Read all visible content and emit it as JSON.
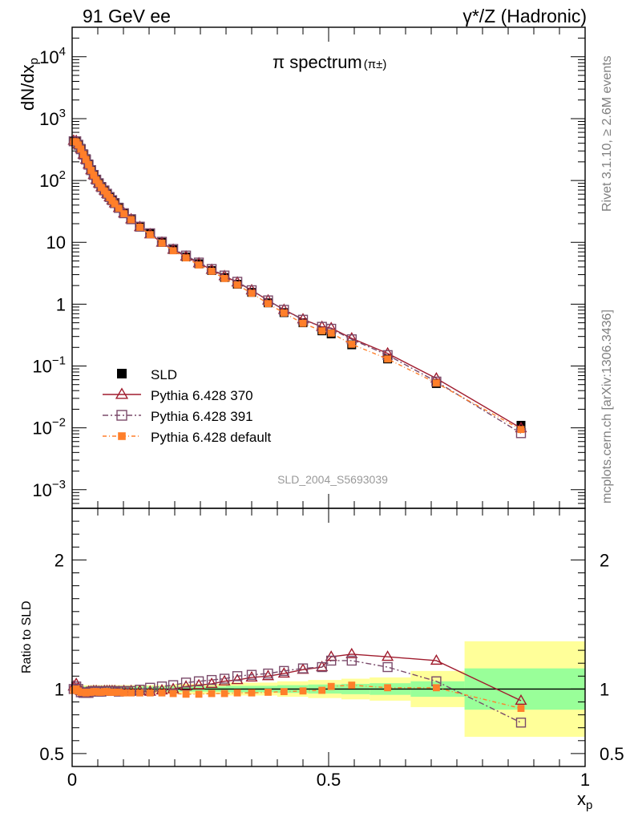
{
  "header": {
    "left": "91 GeV ee",
    "right": "γ*/Z (Hadronic)"
  },
  "side_labels": {
    "top": "Rivet 3.1.10, ≥ 2.6M events",
    "bottom": "mcplots.cern.ch [arXiv:1306.3436]"
  },
  "chart_data": [
    {
      "type": "scatter",
      "panel": "main",
      "title": "π spectrum",
      "title_sub": "(π±)",
      "ylabel": "dN/dx",
      "ylabel_sub": "p",
      "xlabel": "",
      "yscale": "log",
      "xlim": [
        0,
        1
      ],
      "ylim": [
        0.0005,
        30000
      ],
      "yticks": [
        {
          "v": 0.001,
          "base": "10",
          "exp": "−3"
        },
        {
          "v": 0.01,
          "base": "10",
          "exp": "−2"
        },
        {
          "v": 0.1,
          "base": "10",
          "exp": "−1"
        },
        {
          "v": 1,
          "base": "1",
          "exp": ""
        },
        {
          "v": 10,
          "base": "10",
          "exp": ""
        },
        {
          "v": 100,
          "base": "10",
          "exp": "2"
        },
        {
          "v": 1000,
          "base": "10",
          "exp": "3"
        },
        {
          "v": 10000,
          "base": "10",
          "exp": "4"
        }
      ],
      "watermark": "SLD_2004_S5693039",
      "legend_position": "bottom-left",
      "series": [
        {
          "name": "SLD",
          "color": "#000000",
          "marker": "filled-square",
          "x": [
            0.003,
            0.008,
            0.012,
            0.017,
            0.022,
            0.027,
            0.032,
            0.037,
            0.042,
            0.047,
            0.052,
            0.057,
            0.063,
            0.068,
            0.073,
            0.078,
            0.083,
            0.091,
            0.101,
            0.115,
            0.132,
            0.152,
            0.175,
            0.197,
            0.222,
            0.247,
            0.272,
            0.297,
            0.322,
            0.35,
            0.382,
            0.413,
            0.45,
            0.487,
            0.505,
            0.545,
            0.615,
            0.71,
            0.875
          ],
          "y": [
            430,
            420,
            380,
            330,
            270,
            225,
            185,
            150,
            125,
            105,
            92,
            80,
            70,
            62,
            55,
            49,
            44,
            37,
            30,
            24,
            18,
            13.8,
            10,
            7.6,
            5.8,
            4.5,
            3.5,
            2.7,
            2.1,
            1.55,
            1.05,
            0.73,
            0.5,
            0.37,
            0.33,
            0.22,
            0.13,
            0.052,
            0.011
          ]
        },
        {
          "name": "Pythia 6.428 370",
          "color": "#a01c2e",
          "marker": "open-triangle",
          "dash": "",
          "x": [
            0.003,
            0.008,
            0.012,
            0.017,
            0.022,
            0.027,
            0.032,
            0.037,
            0.042,
            0.047,
            0.052,
            0.057,
            0.063,
            0.068,
            0.073,
            0.078,
            0.083,
            0.091,
            0.101,
            0.115,
            0.132,
            0.152,
            0.175,
            0.197,
            0.222,
            0.247,
            0.272,
            0.297,
            0.322,
            0.35,
            0.382,
            0.413,
            0.45,
            0.487,
            0.505,
            0.545,
            0.615,
            0.71,
            0.875
          ],
          "y": [
            440,
            436,
            385,
            325,
            262,
            218,
            181,
            147,
            123,
            103,
            90,
            78,
            69,
            61,
            54,
            48,
            43,
            36,
            29.5,
            23.6,
            17.7,
            13.5,
            9.9,
            7.6,
            5.9,
            4.6,
            3.6,
            2.85,
            2.25,
            1.68,
            1.15,
            0.81,
            0.57,
            0.43,
            0.41,
            0.28,
            0.16,
            0.063,
            0.0099
          ]
        },
        {
          "name": "Pythia 6.428 391",
          "color": "#7a4a6a",
          "marker": "open-square",
          "dash": "7,3,2,3",
          "x": [
            0.003,
            0.008,
            0.012,
            0.017,
            0.022,
            0.027,
            0.032,
            0.037,
            0.042,
            0.047,
            0.052,
            0.057,
            0.063,
            0.068,
            0.073,
            0.078,
            0.083,
            0.091,
            0.101,
            0.115,
            0.132,
            0.152,
            0.175,
            0.197,
            0.222,
            0.247,
            0.272,
            0.297,
            0.322,
            0.35,
            0.382,
            0.413,
            0.45,
            0.487,
            0.505,
            0.545,
            0.615,
            0.71,
            0.875
          ],
          "y": [
            430,
            430,
            378,
            320,
            262,
            218,
            180,
            147,
            123,
            103,
            90,
            78,
            69,
            61,
            54,
            48,
            43,
            36,
            29.5,
            23.6,
            17.9,
            14,
            10.2,
            7.8,
            6.1,
            4.7,
            3.7,
            2.9,
            2.3,
            1.68,
            1.15,
            0.81,
            0.56,
            0.43,
            0.4,
            0.27,
            0.15,
            0.056,
            0.0082
          ]
        },
        {
          "name": "Pythia 6.428 default",
          "color": "#ff7f2a",
          "marker": "filled-square-small",
          "dash": "5,3,1,3",
          "x": [
            0.003,
            0.008,
            0.012,
            0.017,
            0.022,
            0.027,
            0.032,
            0.037,
            0.042,
            0.047,
            0.052,
            0.057,
            0.063,
            0.068,
            0.073,
            0.078,
            0.083,
            0.091,
            0.101,
            0.115,
            0.132,
            0.152,
            0.175,
            0.197,
            0.222,
            0.247,
            0.272,
            0.297,
            0.322,
            0.35,
            0.382,
            0.413,
            0.45,
            0.487,
            0.505,
            0.545,
            0.615,
            0.71,
            0.875
          ],
          "y": [
            425,
            420,
            375,
            322,
            263,
            218,
            180,
            146,
            122,
            102,
            89,
            77,
            68,
            60,
            53,
            47,
            42,
            35.5,
            29,
            23.3,
            17.5,
            13.3,
            9.7,
            7.3,
            5.6,
            4.3,
            3.4,
            2.6,
            2.05,
            1.5,
            1.02,
            0.72,
            0.49,
            0.37,
            0.34,
            0.225,
            0.13,
            0.053,
            0.0094
          ]
        }
      ]
    },
    {
      "type": "scatter",
      "panel": "ratio",
      "ylabel": "Ratio to SLD",
      "xlabel": "x",
      "xlabel_sub": "p",
      "xlim": [
        0,
        1
      ],
      "ylim": [
        0.4,
        2.4
      ],
      "xticks": [
        0,
        0.5,
        1
      ],
      "xtick_labels": [
        "0",
        "0.5",
        "1"
      ],
      "yticks": [
        0.5,
        1,
        2
      ],
      "ytick_labels": [
        "0.5",
        "1",
        "2"
      ],
      "uncertainty_bands": {
        "colors": {
          "stat": "#99ff99",
          "total": "#ffff99"
        },
        "bins": [
          {
            "x0": 0.0,
            "x1": 0.12,
            "stat": 0.02,
            "total": 0.03
          },
          {
            "x0": 0.12,
            "x1": 0.2,
            "stat": 0.02,
            "total": 0.03
          },
          {
            "x0": 0.2,
            "x1": 0.3,
            "stat": 0.02,
            "total": 0.04
          },
          {
            "x0": 0.3,
            "x1": 0.4,
            "stat": 0.025,
            "total": 0.05
          },
          {
            "x0": 0.4,
            "x1": 0.46,
            "stat": 0.03,
            "total": 0.06
          },
          {
            "x0": 0.46,
            "x1": 0.525,
            "stat": 0.035,
            "total": 0.07
          },
          {
            "x0": 0.525,
            "x1": 0.58,
            "stat": 0.04,
            "total": 0.08
          },
          {
            "x0": 0.58,
            "x1": 0.66,
            "stat": 0.045,
            "total": 0.09
          },
          {
            "x0": 0.66,
            "x1": 0.765,
            "stat": 0.06,
            "total": 0.14
          },
          {
            "x0": 0.765,
            "x1": 1.0,
            "stat": 0.16,
            "total": 0.37
          }
        ]
      },
      "series": [
        {
          "name": "Pythia 6.428 370",
          "color": "#a01c2e",
          "marker": "open-triangle",
          "dash": "",
          "x": [
            0.003,
            0.008,
            0.012,
            0.017,
            0.022,
            0.027,
            0.032,
            0.037,
            0.042,
            0.047,
            0.052,
            0.057,
            0.063,
            0.068,
            0.073,
            0.078,
            0.083,
            0.091,
            0.101,
            0.115,
            0.132,
            0.152,
            0.175,
            0.197,
            0.222,
            0.247,
            0.272,
            0.297,
            0.322,
            0.35,
            0.382,
            0.413,
            0.45,
            0.487,
            0.505,
            0.545,
            0.615,
            0.71,
            0.875
          ],
          "y": [
            1.02,
            1.04,
            1.01,
            0.985,
            0.97,
            0.97,
            0.98,
            0.98,
            0.985,
            0.985,
            0.98,
            0.98,
            0.985,
            0.985,
            0.985,
            0.985,
            0.985,
            0.98,
            0.985,
            0.985,
            0.985,
            0.98,
            0.99,
            1.0,
            1.02,
            1.03,
            1.04,
            1.06,
            1.07,
            1.09,
            1.1,
            1.12,
            1.15,
            1.17,
            1.25,
            1.27,
            1.25,
            1.22,
            0.91
          ]
        },
        {
          "name": "Pythia 6.428 391",
          "color": "#7a4a6a",
          "marker": "open-square",
          "dash": "7,3,2,3",
          "x": [
            0.003,
            0.008,
            0.012,
            0.017,
            0.022,
            0.027,
            0.032,
            0.037,
            0.042,
            0.047,
            0.052,
            0.057,
            0.063,
            0.068,
            0.073,
            0.078,
            0.083,
            0.091,
            0.101,
            0.115,
            0.132,
            0.152,
            0.175,
            0.197,
            0.222,
            0.247,
            0.272,
            0.297,
            0.322,
            0.35,
            0.382,
            0.413,
            0.45,
            0.487,
            0.505,
            0.545,
            0.615,
            0.71,
            0.875
          ],
          "y": [
            1.0,
            1.02,
            1.0,
            0.975,
            0.97,
            0.97,
            0.97,
            0.98,
            0.985,
            0.985,
            0.98,
            0.98,
            0.985,
            0.985,
            0.985,
            0.985,
            0.985,
            0.98,
            0.985,
            0.985,
            0.995,
            1.01,
            1.02,
            1.03,
            1.05,
            1.06,
            1.07,
            1.08,
            1.1,
            1.11,
            1.12,
            1.14,
            1.16,
            1.17,
            1.22,
            1.22,
            1.17,
            1.06,
            0.74
          ]
        },
        {
          "name": "Pythia 6.428 default",
          "color": "#ff7f2a",
          "marker": "filled-square-small",
          "dash": "5,3,1,3",
          "x": [
            0.003,
            0.008,
            0.012,
            0.017,
            0.022,
            0.027,
            0.032,
            0.037,
            0.042,
            0.047,
            0.052,
            0.057,
            0.063,
            0.068,
            0.073,
            0.078,
            0.083,
            0.091,
            0.101,
            0.115,
            0.132,
            0.152,
            0.175,
            0.197,
            0.222,
            0.247,
            0.272,
            0.297,
            0.322,
            0.35,
            0.382,
            0.413,
            0.45,
            0.487,
            0.505,
            0.545,
            0.615,
            0.71,
            0.875
          ],
          "y": [
            0.99,
            1.0,
            0.985,
            0.975,
            0.975,
            0.97,
            0.975,
            0.975,
            0.98,
            0.98,
            0.975,
            0.975,
            0.98,
            0.98,
            0.975,
            0.975,
            0.975,
            0.975,
            0.97,
            0.97,
            0.97,
            0.97,
            0.97,
            0.965,
            0.96,
            0.96,
            0.965,
            0.965,
            0.97,
            0.97,
            0.975,
            0.98,
            0.985,
            0.99,
            1.02,
            1.03,
            1.01,
            1.01,
            0.85
          ]
        }
      ]
    }
  ]
}
